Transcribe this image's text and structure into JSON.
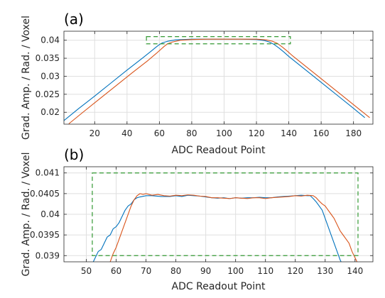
{
  "chart_data": [
    {
      "type": "line",
      "panel_label": "(a)",
      "xlabel": "ADC Readout Point",
      "ylabel": "Grad. Amp. / Rad. / Voxel",
      "xlim": [
        1,
        192
      ],
      "ylim": [
        0.0167,
        0.0425
      ],
      "xticks": [
        20,
        40,
        60,
        80,
        100,
        120,
        140,
        160,
        180
      ],
      "yticks": [
        0.02,
        0.025,
        0.03,
        0.035,
        0.04
      ],
      "ytick_labels": [
        "0.02",
        "0.025",
        "0.03",
        "0.035",
        "0.04"
      ],
      "grid": true,
      "series": [
        {
          "color": "#0072BD",
          "x": [
            1,
            10,
            20,
            30,
            40,
            50,
            55,
            58,
            60,
            62,
            65,
            70,
            80,
            90,
            100,
            110,
            120,
            125,
            128,
            131,
            134,
            137,
            140,
            150,
            160,
            170,
            180,
            187
          ],
          "y": [
            0.0177,
            0.021,
            0.0245,
            0.0281,
            0.0317,
            0.0352,
            0.037,
            0.0381,
            0.0388,
            0.0393,
            0.0397,
            0.0401,
            0.0403,
            0.0403,
            0.0403,
            0.0403,
            0.0402,
            0.0399,
            0.0395,
            0.0388,
            0.0378,
            0.0367,
            0.0355,
            0.0319,
            0.0283,
            0.0247,
            0.0211,
            0.0185
          ]
        },
        {
          "color": "#D95319",
          "x": [
            4,
            13,
            23,
            33,
            43,
            53,
            58,
            61,
            63,
            65,
            68,
            73,
            80,
            90,
            100,
            110,
            120,
            126,
            130,
            133,
            136,
            139,
            142,
            152,
            162,
            172,
            182,
            190
          ],
          "y": [
            0.0168,
            0.0201,
            0.0237,
            0.0273,
            0.0309,
            0.0344,
            0.0363,
            0.0375,
            0.0383,
            0.039,
            0.0395,
            0.04,
            0.0402,
            0.0403,
            0.0403,
            0.0403,
            0.0403,
            0.0401,
            0.0397,
            0.0391,
            0.0381,
            0.037,
            0.0358,
            0.0322,
            0.0286,
            0.025,
            0.0214,
            0.0185
          ]
        }
      ],
      "box": {
        "color": "#339933",
        "x0": 52,
        "x1": 141,
        "y0": 0.039,
        "y1": 0.041
      }
    },
    {
      "type": "line",
      "panel_label": "(b)",
      "xlabel": "ADC Readout Point",
      "ylabel": "Grad. Amp. / Rad. / Voxel",
      "xlim": [
        42.5,
        146
      ],
      "ylim": [
        0.03885,
        0.04115
      ],
      "xticks": [
        50,
        60,
        70,
        80,
        90,
        100,
        110,
        120,
        130,
        140
      ],
      "yticks": [
        0.039,
        0.0395,
        0.04,
        0.0405,
        0.041
      ],
      "ytick_labels": [
        "0.039",
        "0.0395",
        "0.04",
        "0.0405",
        "0.041"
      ],
      "grid": true,
      "series": [
        {
          "color": "#0072BD",
          "x": [
            51,
            52,
            53,
            54,
            55,
            56,
            57,
            58,
            59,
            60,
            61,
            62,
            63,
            64,
            65,
            66,
            67,
            68,
            70,
            72,
            75,
            78,
            80,
            82,
            84,
            86,
            88,
            90,
            92,
            94,
            96,
            98,
            100,
            102,
            104,
            106,
            108,
            110,
            112,
            114,
            116,
            118,
            120,
            122,
            124,
            125,
            126,
            127,
            128,
            129,
            130,
            131,
            132,
            133,
            134,
            135,
            136
          ],
          "y": [
            0.03875,
            0.0388,
            0.03895,
            0.0391,
            0.03915,
            0.0393,
            0.03945,
            0.0395,
            0.03965,
            0.0397,
            0.0398,
            0.03995,
            0.0401,
            0.0402,
            0.04025,
            0.04035,
            0.0404,
            0.04042,
            0.04045,
            0.04045,
            0.04043,
            0.04043,
            0.04045,
            0.04043,
            0.04046,
            0.04045,
            0.04044,
            0.04042,
            0.0404,
            0.04039,
            0.0404,
            0.04038,
            0.0404,
            0.04039,
            0.0404,
            0.0404,
            0.04041,
            0.0404,
            0.0404,
            0.04042,
            0.04043,
            0.04044,
            0.04045,
            0.04046,
            0.04045,
            0.04045,
            0.04038,
            0.0403,
            0.0402,
            0.0401,
            0.0399,
            0.0397,
            0.0395,
            0.0393,
            0.0391,
            0.0389,
            0.03875
          ]
        },
        {
          "color": "#D95319",
          "x": [
            57,
            58,
            59,
            60,
            61,
            62,
            63,
            64,
            65,
            66,
            67,
            68,
            69,
            70,
            72,
            74,
            76,
            78,
            80,
            82,
            84,
            86,
            88,
            90,
            92,
            94,
            96,
            98,
            100,
            102,
            104,
            106,
            108,
            110,
            112,
            114,
            116,
            118,
            120,
            122,
            124,
            126,
            127,
            128,
            129,
            130,
            131,
            132,
            133,
            134,
            135,
            136,
            137,
            138,
            139,
            140,
            141
          ],
          "y": [
            0.03875,
            0.03885,
            0.03905,
            0.0392,
            0.0394,
            0.0396,
            0.0398,
            0.04,
            0.0402,
            0.04035,
            0.04045,
            0.0405,
            0.04048,
            0.0405,
            0.04046,
            0.04048,
            0.04045,
            0.04044,
            0.04046,
            0.04045,
            0.04047,
            0.04046,
            0.04044,
            0.04043,
            0.0404,
            0.0404,
            0.04039,
            0.04038,
            0.0404,
            0.04039,
            0.04038,
            0.0404,
            0.0404,
            0.04038,
            0.0404,
            0.04041,
            0.04042,
            0.04043,
            0.04045,
            0.04044,
            0.04046,
            0.04045,
            0.0404,
            0.04032,
            0.04025,
            0.0402,
            0.0401,
            0.04,
            0.0399,
            0.03975,
            0.0396,
            0.0395,
            0.0394,
            0.0393,
            0.0391,
            0.03895,
            0.0388
          ]
        }
      ],
      "box": {
        "color": "#339933",
        "x0": 52,
        "x1": 141,
        "y0": 0.039,
        "y1": 0.041
      }
    }
  ]
}
